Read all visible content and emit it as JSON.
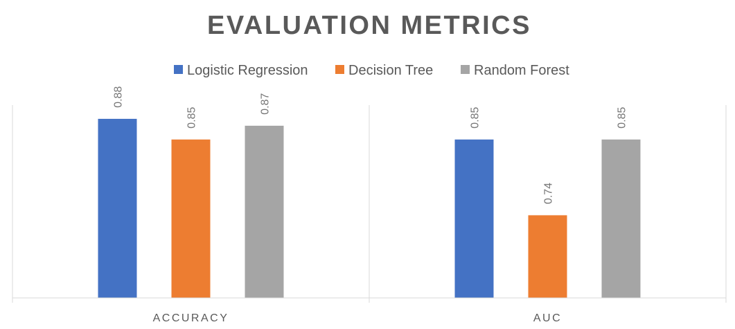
{
  "chart_data": {
    "type": "bar",
    "title": "EVALUATION METRICS",
    "categories": [
      "ACCURACY",
      "AUC"
    ],
    "series": [
      {
        "name": "Logistic Regression",
        "color": "#4472C4",
        "values": [
          0.88,
          0.85
        ]
      },
      {
        "name": "Decision Tree",
        "color": "#ED7D31",
        "values": [
          0.85,
          0.74
        ]
      },
      {
        "name": "Random Forest",
        "color": "#A5A5A5",
        "values": [
          0.87,
          0.85
        ]
      }
    ],
    "ylim": [
      0.62,
      0.9
    ],
    "data_labels": true,
    "data_label_orientation": "vertical",
    "legend_position": "top",
    "gridlines": "vertical category separators",
    "y_axis_visible": false
  }
}
